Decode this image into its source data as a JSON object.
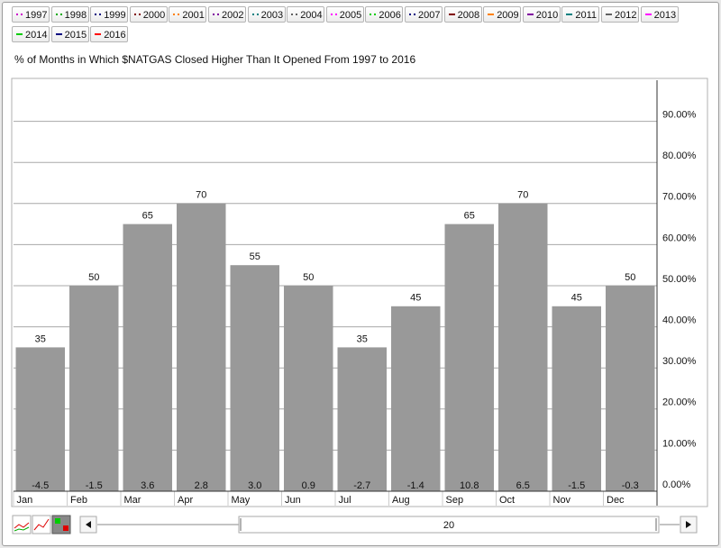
{
  "chart_data": {
    "type": "bar",
    "title": "% of Months in Which $NATGAS Closed Higher Than It Opened From 1997 to 2016",
    "categories": [
      "Jan",
      "Feb",
      "Mar",
      "Apr",
      "May",
      "Jun",
      "Jul",
      "Aug",
      "Sep",
      "Oct",
      "Nov",
      "Dec"
    ],
    "values": [
      35,
      50,
      65,
      70,
      55,
      50,
      35,
      45,
      65,
      70,
      45,
      50
    ],
    "bottom_labels": [
      "-4.5",
      "-1.5",
      "3.6",
      "2.8",
      "3.0",
      "0.9",
      "-2.7",
      "-1.4",
      "10.8",
      "6.5",
      "-1.5",
      "-0.3"
    ],
    "color": "#999999",
    "ylim": [
      0,
      100
    ],
    "yticks": [
      {
        "value": 0,
        "label": "0.00%"
      },
      {
        "value": 10,
        "label": "10.00%"
      },
      {
        "value": 20,
        "label": "20.00%"
      },
      {
        "value": 30,
        "label": "30.00%"
      },
      {
        "value": 40,
        "label": "40.00%"
      },
      {
        "value": 50,
        "label": "50.00%"
      },
      {
        "value": 60,
        "label": "60.00%"
      },
      {
        "value": 70,
        "label": "70.00%"
      },
      {
        "value": 80,
        "label": "80.00%"
      },
      {
        "value": 90,
        "label": "90.00%"
      }
    ],
    "grid": true,
    "legend_items": [
      {
        "name": "1997",
        "color": "#cc00cc",
        "style": "dotted"
      },
      {
        "name": "1998",
        "color": "#00aa00",
        "style": "dotted"
      },
      {
        "name": "1999",
        "color": "#000080",
        "style": "dotted"
      },
      {
        "name": "2000",
        "color": "#800000",
        "style": "dotted"
      },
      {
        "name": "2001",
        "color": "#ff8000",
        "style": "dotted"
      },
      {
        "name": "2002",
        "color": "#8000a0",
        "style": "dotted"
      },
      {
        "name": "2003",
        "color": "#008080",
        "style": "dotted"
      },
      {
        "name": "2004",
        "color": "#606060",
        "style": "dotted"
      },
      {
        "name": "2005",
        "color": "#ff00ff",
        "style": "dotted"
      },
      {
        "name": "2006",
        "color": "#00cc00",
        "style": "dotted"
      },
      {
        "name": "2007",
        "color": "#000080",
        "style": "dotted"
      },
      {
        "name": "2008",
        "color": "#800000",
        "style": "solid"
      },
      {
        "name": "2009",
        "color": "#ff8000",
        "style": "solid"
      },
      {
        "name": "2010",
        "color": "#8000a0",
        "style": "solid"
      },
      {
        "name": "2011",
        "color": "#008080",
        "style": "solid"
      },
      {
        "name": "2012",
        "color": "#606060",
        "style": "solid"
      },
      {
        "name": "2013",
        "color": "#ff00ff",
        "style": "solid"
      },
      {
        "name": "2014",
        "color": "#00cc00",
        "style": "solid"
      },
      {
        "name": "2015",
        "color": "#000080",
        "style": "solid"
      },
      {
        "name": "2016",
        "color": "#ff0000",
        "style": "solid"
      }
    ],
    "navigator_label": "20"
  }
}
